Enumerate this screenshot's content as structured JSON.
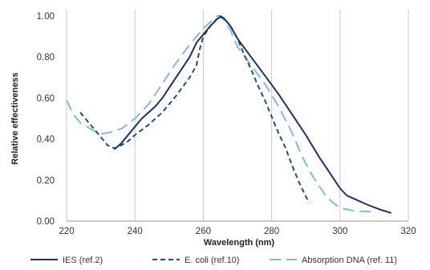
{
  "chart_data": {
    "type": "line",
    "title": "",
    "xlabel": "Wavelength (nm)",
    "ylabel": "Relative effectiveness",
    "xlim": [
      220,
      320
    ],
    "ylim": [
      0,
      1
    ],
    "xticks": [
      "220",
      "240",
      "260",
      "280",
      "300",
      "320"
    ],
    "yticks": [
      "0.00",
      "0.20",
      "0.40",
      "0.60",
      "0.80",
      "1.00"
    ],
    "grid": "vertical lines at x ticks",
    "legend_position": "bottom",
    "series": [
      {
        "name": "IES (ref.2)",
        "color": "#1f2f6e",
        "dash": "solid",
        "points": [
          [
            234,
            0.35
          ],
          [
            236,
            0.38
          ],
          [
            240,
            0.46
          ],
          [
            242,
            0.5
          ],
          [
            246,
            0.56
          ],
          [
            248,
            0.6
          ],
          [
            252,
            0.7
          ],
          [
            256,
            0.8
          ],
          [
            258,
            0.87
          ],
          [
            260,
            0.91
          ],
          [
            262,
            0.95
          ],
          [
            264,
            0.985
          ],
          [
            265,
            0.995
          ],
          [
            266,
            0.99
          ],
          [
            268,
            0.95
          ],
          [
            270,
            0.89
          ],
          [
            274,
            0.8
          ],
          [
            278,
            0.71
          ],
          [
            282,
            0.62
          ],
          [
            286,
            0.52
          ],
          [
            290,
            0.42
          ],
          [
            294,
            0.31
          ],
          [
            298,
            0.21
          ],
          [
            300,
            0.16
          ],
          [
            302,
            0.125
          ],
          [
            304,
            0.11
          ],
          [
            308,
            0.08
          ],
          [
            312,
            0.055
          ],
          [
            315,
            0.04
          ]
        ]
      },
      {
        "name": "E. coli (ref.10)",
        "color": "#1f4f7a",
        "dash": "dashed",
        "points": [
          [
            224,
            0.53
          ],
          [
            226,
            0.49
          ],
          [
            228,
            0.45
          ],
          [
            230,
            0.41
          ],
          [
            232,
            0.37
          ],
          [
            234,
            0.355
          ],
          [
            236,
            0.37
          ],
          [
            238,
            0.39
          ],
          [
            240,
            0.42
          ],
          [
            244,
            0.47
          ],
          [
            248,
            0.53
          ],
          [
            252,
            0.61
          ],
          [
            256,
            0.7
          ],
          [
            258,
            0.76
          ],
          [
            259,
            0.84
          ],
          [
            260,
            0.9
          ],
          [
            262,
            0.95
          ],
          [
            264,
            0.985
          ],
          [
            265,
            1.0
          ],
          [
            266,
            0.99
          ],
          [
            268,
            0.95
          ],
          [
            270,
            0.89
          ],
          [
            272,
            0.81
          ],
          [
            274,
            0.74
          ],
          [
            276,
            0.66
          ],
          [
            278,
            0.59
          ],
          [
            280,
            0.51
          ],
          [
            282,
            0.43
          ],
          [
            284,
            0.36
          ],
          [
            286,
            0.27
          ],
          [
            288,
            0.19
          ],
          [
            290,
            0.12
          ],
          [
            291,
            0.09
          ]
        ]
      },
      {
        "name": "Absorption DNA (ref. 11)",
        "color": "#7fbfcf",
        "dash": "longdash",
        "points": [
          [
            220,
            0.59
          ],
          [
            222,
            0.52
          ],
          [
            224,
            0.48
          ],
          [
            226,
            0.46
          ],
          [
            228,
            0.44
          ],
          [
            230,
            0.425
          ],
          [
            232,
            0.43
          ],
          [
            236,
            0.45
          ],
          [
            240,
            0.5
          ],
          [
            244,
            0.57
          ],
          [
            248,
            0.67
          ],
          [
            252,
            0.77
          ],
          [
            256,
            0.86
          ],
          [
            260,
            0.94
          ],
          [
            262,
            0.97
          ],
          [
            264,
            1.0
          ],
          [
            265,
            1.0
          ],
          [
            266,
            0.98
          ],
          [
            268,
            0.93
          ],
          [
            270,
            0.85
          ],
          [
            274,
            0.76
          ],
          [
            278,
            0.67
          ],
          [
            282,
            0.56
          ],
          [
            286,
            0.43
          ],
          [
            288,
            0.35
          ],
          [
            290,
            0.28
          ],
          [
            292,
            0.22
          ],
          [
            294,
            0.17
          ],
          [
            296,
            0.12
          ],
          [
            298,
            0.09
          ],
          [
            300,
            0.065
          ],
          [
            304,
            0.05
          ],
          [
            310,
            0.045
          ]
        ]
      }
    ]
  }
}
